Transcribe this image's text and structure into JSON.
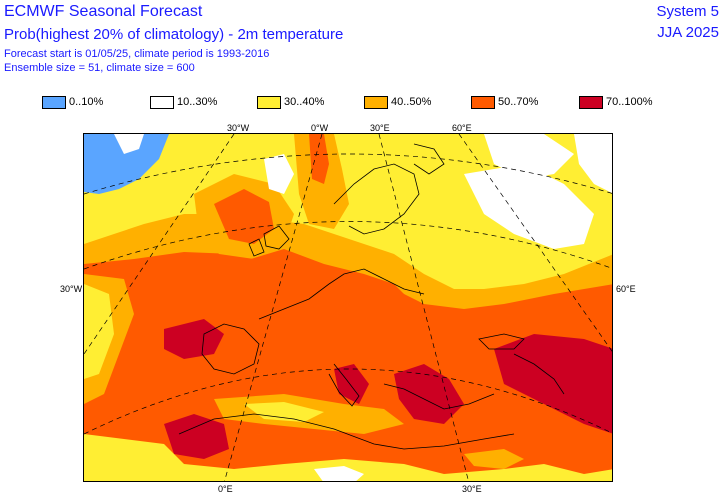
{
  "header": {
    "title": "ECMWF Seasonal Forecast",
    "subtitle": "Prob(highest 20% of climatology) - 2m temperature",
    "forecast_info": "Forecast start is 01/05/25, climate period is 1993-2016",
    "ensemble_info": "Ensemble size = 51, climate size = 600",
    "system": "System 5",
    "season": "JJA 2025"
  },
  "legend": [
    {
      "label": "0..10%",
      "color": "#5aa5ff"
    },
    {
      "label": "10..30%",
      "color": "#ffffff"
    },
    {
      "label": "30..40%",
      "color": "#ffee33"
    },
    {
      "label": "40..50%",
      "color": "#ffb000"
    },
    {
      "label": "50..70%",
      "color": "#ff5a00"
    },
    {
      "label": "70..100%",
      "color": "#cc0022"
    }
  ],
  "map": {
    "labels": {
      "top_30w": "30°W",
      "top_0": "0°W",
      "top_30e": "30°E",
      "top_60e": "60°E",
      "left_30w": "30°W",
      "right_60e": "60°E",
      "bottom_0": "0°E",
      "bottom_30e": "30°E"
    }
  }
}
